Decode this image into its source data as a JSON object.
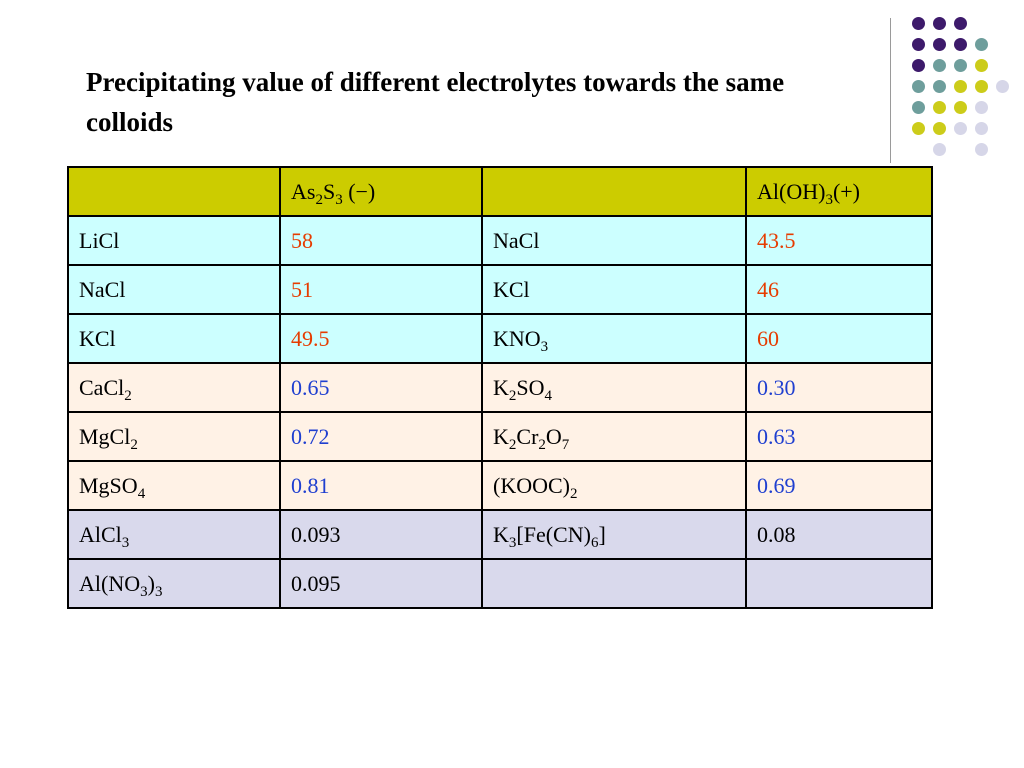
{
  "title": "Precipitating value of different electrolytes towards the same colloids",
  "colors": {
    "header_bg": "#cccc00",
    "group1_bg": "#ccffff",
    "group2_bg": "#fff2e6",
    "group3_bg": "#d9d9ec",
    "red_value": "#e63c00",
    "blue_value": "#1f3fd0",
    "dot_purple": "#3d1a6b",
    "dot_teal": "#6e9e9c",
    "dot_yellow": "#cccc1a",
    "dot_lavender": "#d6d6e8"
  },
  "decoration": {
    "dot_grid_icon": "decorative-dot-grid",
    "dot_rows": [
      [
        "purple",
        "purple",
        "purple",
        "none"
      ],
      [
        "purple",
        "purple",
        "purple",
        "teal"
      ],
      [
        "purple",
        "teal",
        "teal",
        "yellow"
      ],
      [
        "teal",
        "teal",
        "yellow",
        "yellow",
        "lavender"
      ],
      [
        "teal",
        "yellow",
        "yellow",
        "lavender"
      ],
      [
        "yellow",
        "yellow",
        "lavender",
        "lavender"
      ],
      [
        "none",
        "lavender",
        "none",
        "lavender"
      ]
    ]
  },
  "table": {
    "header": {
      "c1": "",
      "c2": "As2S3 (−)",
      "c3": "",
      "c4": "Al(OH)3(+)"
    },
    "rows": [
      {
        "group": "g1",
        "c1": "LiCl",
        "c2": "58",
        "c3": "NaCl",
        "c4": "43.5",
        "value_color": "red"
      },
      {
        "group": "g1",
        "c1": "NaCl",
        "c2": "51",
        "c3": "KCl",
        "c4": "46",
        "value_color": "red"
      },
      {
        "group": "g1",
        "c1": "KCl",
        "c2": "49.5",
        "c3": "KNO3",
        "c4": "60",
        "value_color": "red"
      },
      {
        "group": "g2",
        "c1": "CaCl2",
        "c2": "0.65",
        "c3": "K2SO4",
        "c4": "0.30",
        "value_color": "blue"
      },
      {
        "group": "g2",
        "c1": "MgCl2",
        "c2": "0.72",
        "c3": "K2Cr2O7",
        "c4": "0.63",
        "value_color": "blue"
      },
      {
        "group": "g2",
        "c1": "MgSO4",
        "c2": "0.81",
        "c3": "(KOOC)2",
        "c4": "0.69",
        "value_color": "blue"
      },
      {
        "group": "g3",
        "c1": "AlCl3",
        "c2": "0.093",
        "c3": "K3[Fe(CN)6]",
        "c4": "0.08",
        "value_color": "black"
      },
      {
        "group": "g3",
        "c1": "Al(NO3)3",
        "c2": "0.095",
        "c3": "",
        "c4": "",
        "value_color": "black"
      }
    ]
  }
}
